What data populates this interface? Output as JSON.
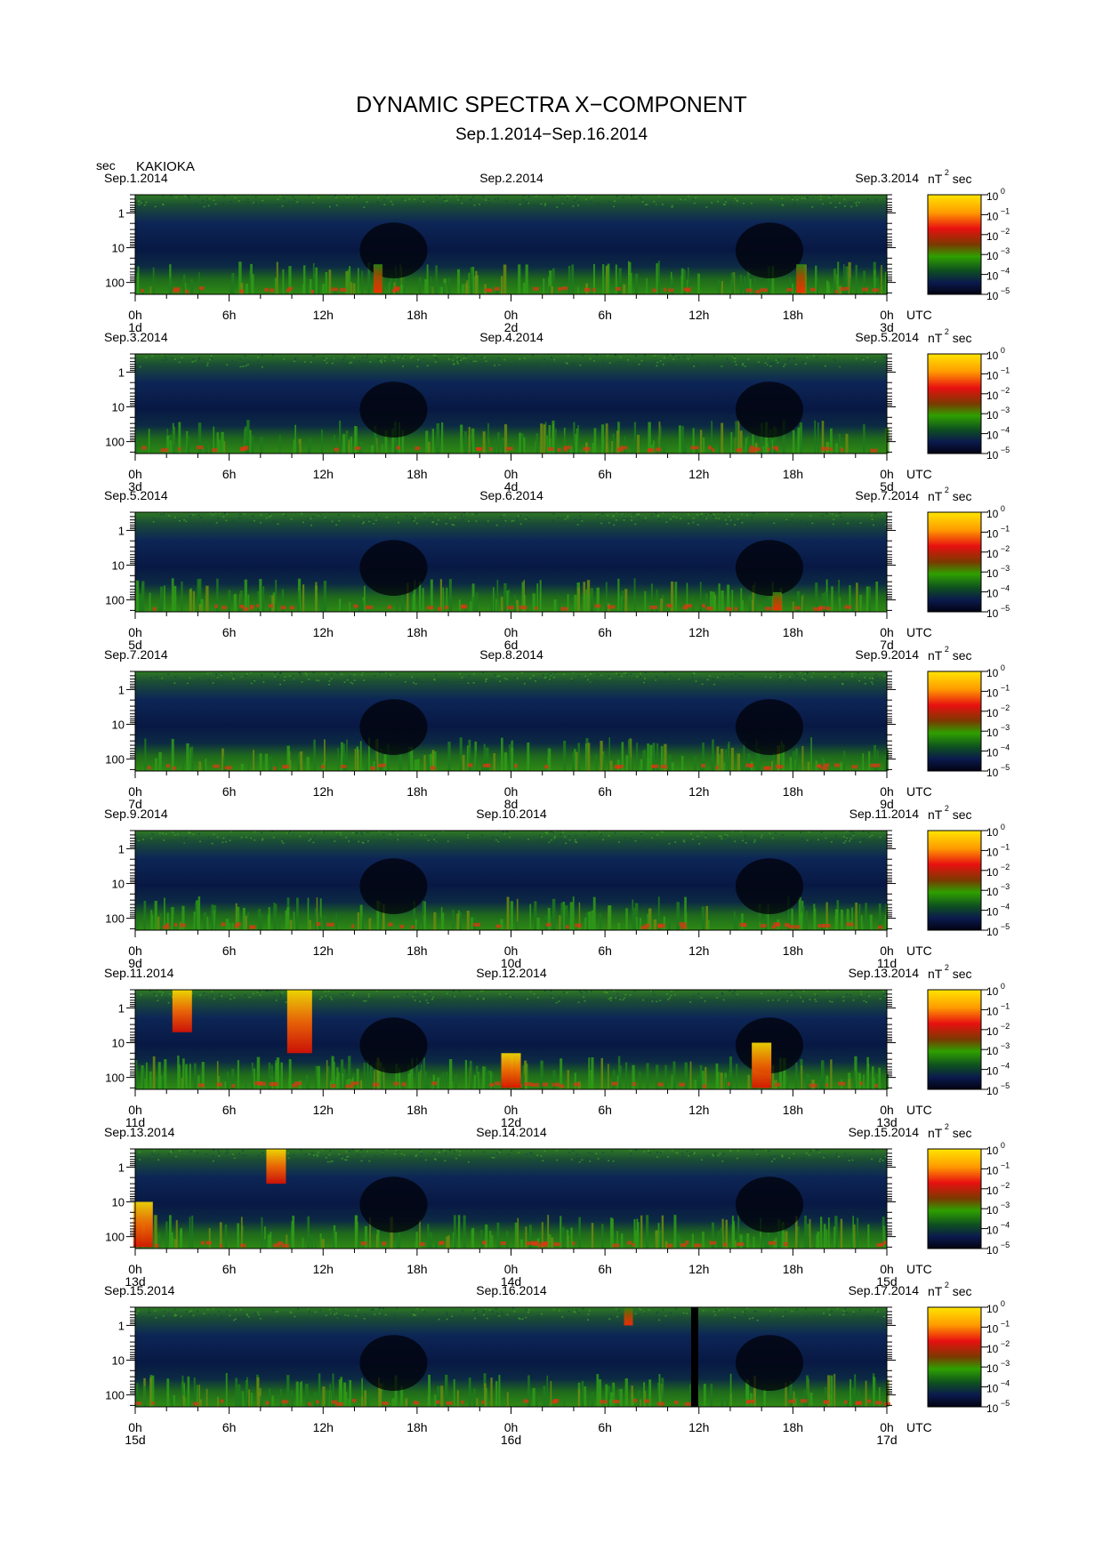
{
  "title": "DYNAMIC SPECTRA X−COMPONENT",
  "subtitle": "Sep.1.2014−Sep.16.2014",
  "y_unit": "sec",
  "station": "KAKIOKA",
  "colorbar_unit": "nT",
  "colorbar_unit_exp": "2",
  "colorbar_unit_tail": "sec",
  "colorbar_ticks": [
    {
      "base": "10",
      "exp": "0"
    },
    {
      "base": "10",
      "exp": "−1"
    },
    {
      "base": "10",
      "exp": "−2"
    },
    {
      "base": "10",
      "exp": "−3"
    },
    {
      "base": "10",
      "exp": "−4"
    },
    {
      "base": "10",
      "exp": "−5"
    }
  ],
  "colors": {
    "colorbar_top": "#ffe500",
    "colorbar_orange": "#ff8000",
    "colorbar_red": "#e81010",
    "colorbar_darkred": "#7a3a00",
    "colorbar_green": "#2ea000",
    "colorbar_darkgreen": "#0e5020",
    "colorbar_navy": "#0b1a4d",
    "colorbar_bottom": "#020212"
  },
  "chart_data": {
    "type": "heatmap",
    "scale": "log",
    "y_axis": {
      "label": "sec",
      "ticks": [
        "1",
        "10",
        "100"
      ],
      "inverted": true
    },
    "x_tick_labels": [
      "0h",
      "6h",
      "12h",
      "18h",
      "0h",
      "6h",
      "12h",
      "18h",
      "0h"
    ],
    "x_suffix": "UTC",
    "panels": [
      {
        "start": "Sep.1.2014",
        "mid": "Sep.2.2014",
        "end": "Sep.3.2014",
        "day_labels": [
          "1d",
          "2d",
          "3d"
        ],
        "activity": "low",
        "events": [
          {
            "time_h": 15.5,
            "period_range": [
              30,
              200
            ],
            "level": "moderate"
          },
          {
            "time_h": 42.5,
            "period_range": [
              30,
              200
            ],
            "level": "moderate"
          }
        ]
      },
      {
        "start": "Sep.3.2014",
        "mid": "Sep.4.2014",
        "end": "Sep.5.2014",
        "day_labels": [
          "3d",
          "4d",
          "5d"
        ],
        "activity": "low",
        "events": []
      },
      {
        "start": "Sep.5.2014",
        "mid": "Sep.6.2014",
        "end": "Sep.7.2014",
        "day_labels": [
          "5d",
          "6d",
          "7d"
        ],
        "activity": "low",
        "events": [
          {
            "time_h": 41,
            "period_range": [
              60,
              200
            ],
            "level": "moderate"
          }
        ]
      },
      {
        "start": "Sep.7.2014",
        "mid": "Sep.8.2014",
        "end": "Sep.9.2014",
        "day_labels": [
          "7d",
          "8d",
          "9d"
        ],
        "activity": "low",
        "events": []
      },
      {
        "start": "Sep.9.2014",
        "mid": "Sep.10.2014",
        "end": "Sep.11.2014",
        "day_labels": [
          "9d",
          "10d",
          "11d"
        ],
        "activity": "low",
        "events": []
      },
      {
        "start": "Sep.11.2014",
        "mid": "Sep.12.2014",
        "end": "Sep.13.2014",
        "day_labels": [
          "11d",
          "12d",
          "13d"
        ],
        "activity": "high",
        "events": [
          {
            "time_h": 3,
            "period_range": [
              0.3,
              5
            ],
            "level": "strong"
          },
          {
            "time_h": 10.5,
            "period_range": [
              0.3,
              20
            ],
            "level": "very strong"
          },
          {
            "time_h": 24,
            "period_range": [
              20,
              200
            ],
            "level": "strong"
          },
          {
            "time_h": 40,
            "period_range": [
              10,
              200
            ],
            "level": "strong"
          }
        ]
      },
      {
        "start": "Sep.13.2014",
        "mid": "Sep.14.2014",
        "end": "Sep.15.2014",
        "day_labels": [
          "13d",
          "14d",
          "15d"
        ],
        "activity": "moderate",
        "events": [
          {
            "time_h": 0.5,
            "period_range": [
              10,
              200
            ],
            "level": "strong"
          },
          {
            "time_h": 9,
            "period_range": [
              0.3,
              3
            ],
            "level": "strong"
          }
        ]
      },
      {
        "start": "Sep.15.2014",
        "mid": "Sep.16.2014",
        "end": "Sep.17.2014",
        "day_labels": [
          "15d",
          "16d",
          "17d"
        ],
        "activity": "low",
        "events": [
          {
            "time_h": 31.5,
            "period_range": [
              0.3,
              1
            ],
            "level": "moderate"
          },
          {
            "time_h": 35.5,
            "period_range": [
              0.3,
              200
            ],
            "level": "data gap"
          }
        ]
      }
    ]
  }
}
